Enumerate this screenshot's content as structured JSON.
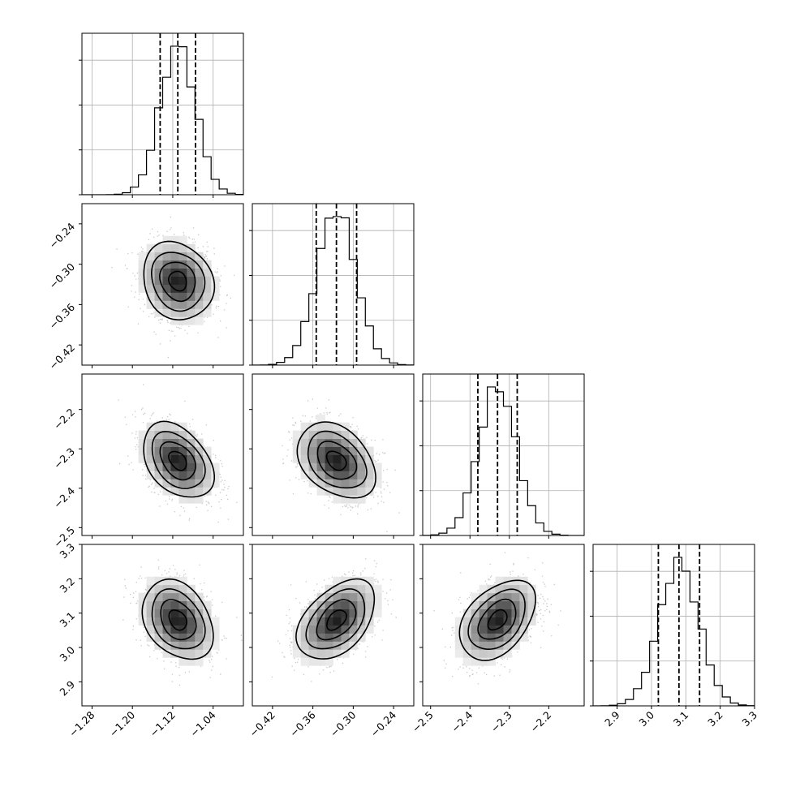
{
  "chart_data": {
    "type": "corner",
    "grid": true,
    "parameters": [
      {
        "mean": -1.11,
        "sd": 0.035,
        "quantiles": [
          -1.145,
          -1.11,
          -1.075
        ],
        "range": [
          -1.3,
          -0.98
        ],
        "ticks": [
          -1.28,
          -1.2,
          -1.12,
          -1.04
        ],
        "tick_labels": [
          "−1.28",
          "−1.20",
          "−1.12",
          "−1.04"
        ]
      },
      {
        "mean": -0.325,
        "sd": 0.029,
        "quantiles": [
          -0.355,
          -0.325,
          -0.295
        ],
        "range": [
          -0.45,
          -0.21
        ],
        "ticks": [
          -0.42,
          -0.36,
          -0.3,
          -0.24
        ],
        "tick_labels": [
          "−0.42",
          "−0.36",
          "−0.30",
          "−0.24"
        ]
      },
      {
        "mean": -2.33,
        "sd": 0.048,
        "quantiles": [
          -2.38,
          -2.33,
          -2.28
        ],
        "range": [
          -2.52,
          -2.11
        ],
        "ticks": [
          -2.5,
          -2.4,
          -2.3,
          -2.2
        ],
        "tick_labels": [
          "−2.5",
          "−2.4",
          "−2.3",
          "−2.2"
        ]
      },
      {
        "mean": 3.08,
        "sd": 0.058,
        "quantiles": [
          3.02,
          3.08,
          3.14
        ],
        "range": [
          2.83,
          3.3
        ],
        "ticks": [
          2.9,
          3.0,
          3.1,
          3.2,
          3.3
        ],
        "tick_labels": [
          "2.9",
          "3.0",
          "3.1",
          "3.2",
          "3.3"
        ]
      }
    ],
    "correlations": [
      {
        "pair": [
          0,
          1
        ],
        "rho": -0.15
      },
      {
        "pair": [
          0,
          2
        ],
        "rho": -0.38
      },
      {
        "pair": [
          1,
          2
        ],
        "rho": -0.35
      },
      {
        "pair": [
          0,
          3
        ],
        "rho": -0.3
      },
      {
        "pair": [
          1,
          3
        ],
        "rho": 0.45
      },
      {
        "pair": [
          2,
          3
        ],
        "rho": 0.42
      }
    ]
  }
}
